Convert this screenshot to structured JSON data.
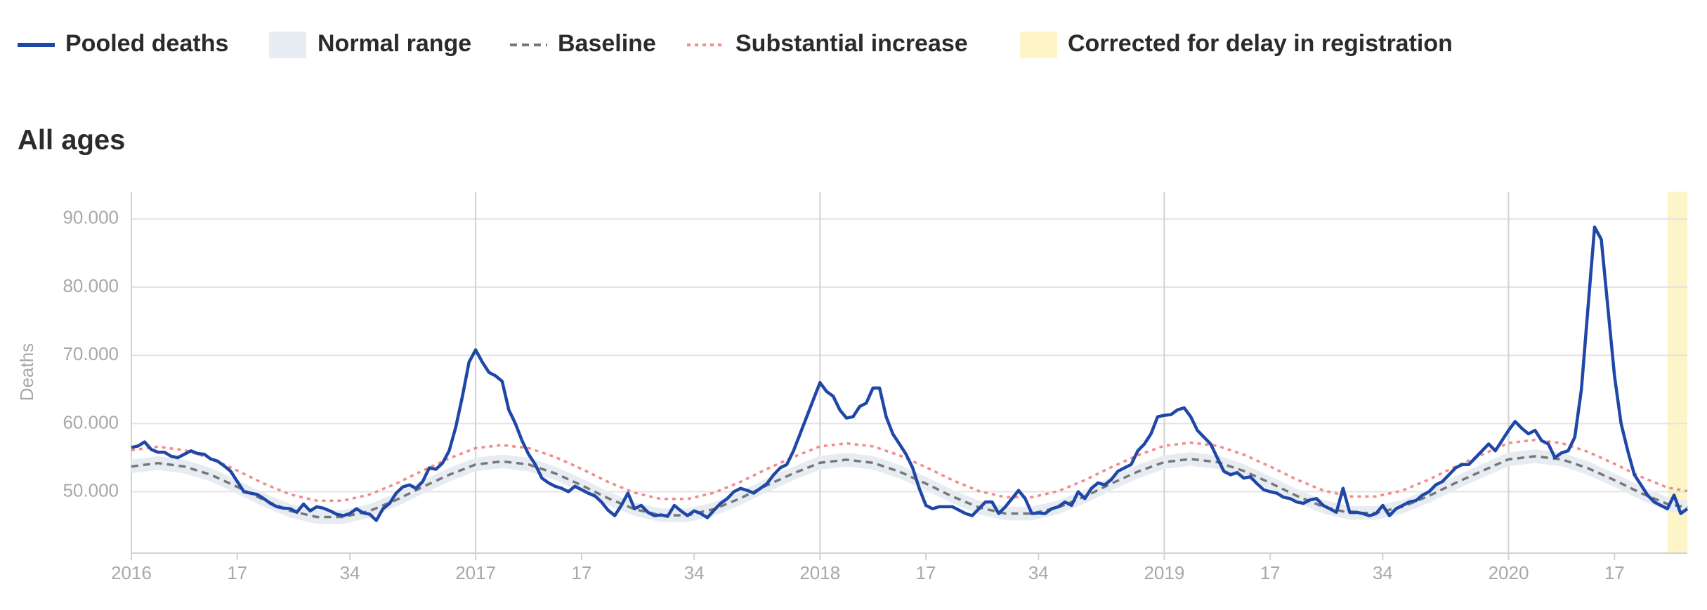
{
  "chart_data": {
    "type": "line",
    "title": "All ages",
    "y_label": "Deaths",
    "xlim": [
      0,
      235
    ],
    "ylim": [
      41000,
      94000
    ],
    "xticks": [
      {
        "value": 0,
        "label": "2016"
      },
      {
        "value": 52,
        "label": "2017"
      },
      {
        "value": 104,
        "label": "2018"
      },
      {
        "value": 156,
        "label": "2019"
      },
      {
        "value": 208,
        "label": "2020"
      }
    ],
    "xticks_minor": [
      {
        "value": 16,
        "label": "17"
      },
      {
        "value": 33,
        "label": "34"
      },
      {
        "value": 68,
        "label": "17"
      },
      {
        "value": 85,
        "label": "34"
      },
      {
        "value": 120,
        "label": "17"
      },
      {
        "value": 137,
        "label": "34"
      },
      {
        "value": 172,
        "label": "17"
      },
      {
        "value": 189,
        "label": "34"
      },
      {
        "value": 224,
        "label": "17"
      }
    ],
    "yticks": [
      {
        "value": 50000,
        "label": "50.000"
      },
      {
        "value": 60000,
        "label": "60.000"
      },
      {
        "value": 70000,
        "label": "70.000"
      },
      {
        "value": 80000,
        "label": "80.000"
      },
      {
        "value": 90000,
        "label": "90.000"
      }
    ],
    "grid": true,
    "series": [
      {
        "name": "Pooled deaths",
        "style": "solid",
        "color": "#1f47a8",
        "x": [
          0,
          1,
          2,
          3,
          4,
          5,
          6,
          7,
          8,
          9,
          10,
          11,
          12,
          13,
          14,
          15,
          16,
          17,
          18,
          19,
          20,
          21,
          22,
          23,
          24,
          25,
          26,
          27,
          28,
          29,
          30,
          31,
          32,
          33,
          34,
          35,
          36,
          37,
          38,
          39,
          40,
          41,
          42,
          43,
          44,
          45,
          46,
          47,
          48,
          49,
          50,
          51,
          52,
          53,
          54,
          55,
          56,
          57,
          58,
          59,
          60,
          61,
          62,
          63,
          64,
          65,
          66,
          67,
          68,
          69,
          70,
          71,
          72,
          73,
          74,
          75,
          76,
          77,
          78,
          79,
          80,
          81,
          82,
          83,
          84,
          85,
          86,
          87,
          88,
          89,
          90,
          91,
          92,
          93,
          94,
          95,
          96,
          97,
          98,
          99,
          100,
          101,
          102,
          103,
          104,
          105,
          106,
          107,
          108,
          109,
          110,
          111,
          112,
          113,
          114,
          115,
          116,
          117,
          118,
          119,
          120,
          121,
          122,
          123,
          124,
          125,
          126,
          127,
          128,
          129,
          130,
          131,
          132,
          133,
          134,
          135,
          136,
          137,
          138,
          139,
          140,
          141,
          142,
          143,
          144,
          145,
          146,
          147,
          148,
          149,
          150,
          151,
          152,
          153,
          154,
          155,
          156,
          157,
          158,
          159,
          160,
          161,
          162,
          163,
          164,
          165,
          166,
          167,
          168,
          169,
          170,
          171,
          172,
          173,
          174,
          175,
          176,
          177,
          178,
          179,
          180,
          181,
          182,
          183,
          184,
          185,
          186,
          187,
          188,
          189,
          190,
          191,
          192,
          193,
          194,
          195,
          196,
          197,
          198,
          199,
          200,
          201,
          202,
          203,
          204,
          205,
          206,
          207,
          208,
          209,
          210,
          211,
          212,
          213,
          214,
          215,
          216,
          217,
          218,
          219,
          220,
          221,
          222,
          223,
          224,
          225,
          226,
          227,
          228,
          229,
          230,
          231,
          232,
          233,
          234,
          235
        ],
        "values": [
          56500,
          56700,
          57300,
          56200,
          55800,
          55800,
          55200,
          55000,
          55500,
          56000,
          55600,
          55500,
          54800,
          54500,
          53800,
          53000,
          51500,
          50000,
          49800,
          49600,
          49000,
          48300,
          47800,
          47600,
          47500,
          47000,
          48200,
          47200,
          47800,
          47600,
          47200,
          46700,
          46500,
          46800,
          47500,
          46900,
          46700,
          45800,
          47500,
          48300,
          49800,
          50700,
          51000,
          50500,
          51500,
          53500,
          53300,
          54200,
          56000,
          59500,
          64000,
          69000,
          70800,
          69000,
          67500,
          67000,
          66200,
          62000,
          60000,
          57500,
          55500,
          54000,
          52000,
          51300,
          50800,
          50500,
          50000,
          50800,
          50300,
          49800,
          49400,
          48500,
          47300,
          46500,
          48000,
          49800,
          47500,
          48000,
          47000,
          46500,
          46600,
          46400,
          48000,
          47200,
          46500,
          47200,
          46800,
          46200,
          47300,
          48300,
          49000,
          50000,
          50500,
          50200,
          49800,
          50500,
          51200,
          52500,
          53500,
          54000,
          56000,
          58500,
          61000,
          63500,
          66000,
          64700,
          64000,
          62000,
          60800,
          61000,
          62500,
          63000,
          65200,
          65200,
          61000,
          58500,
          57000,
          55500,
          53500,
          50500,
          48000,
          47500,
          47800,
          47800,
          47800,
          47300,
          46800,
          46500,
          47500,
          48500,
          48500,
          46800,
          47800,
          49000,
          50200,
          49000,
          46800,
          46900,
          46800,
          47500,
          47800,
          48500,
          48000,
          50000,
          49000,
          50500,
          51300,
          51000,
          51800,
          53000,
          53500,
          54000,
          56000,
          57000,
          58500,
          61000,
          61200,
          61300,
          62000,
          62300,
          61000,
          59000,
          58000,
          57000,
          55000,
          53000,
          52500,
          52800,
          52000,
          52200,
          51200,
          50300,
          50000,
          49800,
          49200,
          49000,
          48500,
          48300,
          48800,
          49000,
          48000,
          47500,
          47000,
          50500,
          47000,
          47000,
          46800,
          46500,
          46800,
          48000,
          46500,
          47500,
          48000,
          48500,
          48700,
          49500,
          50000,
          51000,
          51500,
          52500,
          53500,
          54000,
          54000,
          55000,
          56000,
          57000,
          56000,
          57500,
          59000,
          60300,
          59300,
          58500,
          59000,
          57500,
          57000,
          55000,
          55700,
          56000,
          58000,
          65000,
          77000,
          88800,
          87000,
          77000,
          67000,
          60000,
          56000,
          52500,
          51000,
          49500,
          48500,
          48000,
          47500,
          49500,
          46800,
          47500
        ]
      },
      {
        "name": "Normal range",
        "style": "band",
        "color": "#e6ecf2",
        "x": [
          0,
          4,
          8,
          12,
          16,
          20,
          24,
          28,
          32,
          36,
          40,
          44,
          48,
          52,
          56,
          60,
          64,
          68,
          72,
          76,
          80,
          84,
          88,
          92,
          96,
          100,
          104,
          108,
          112,
          116,
          120,
          124,
          128,
          132,
          136,
          140,
          144,
          148,
          152,
          156,
          160,
          164,
          168,
          172,
          176,
          180,
          184,
          188,
          192,
          196,
          200,
          204,
          208,
          212,
          216,
          220,
          224,
          228,
          232,
          235
        ],
        "lower": [
          52700,
          53200,
          52700,
          51500,
          49700,
          47800,
          46200,
          45300,
          45300,
          46200,
          47800,
          49700,
          51500,
          53000,
          53450,
          53000,
          51700,
          49950,
          48050,
          46450,
          45550,
          45550,
          46450,
          48050,
          49950,
          51700,
          53250,
          53700,
          53250,
          51950,
          50200,
          48300,
          46700,
          45800,
          45800,
          46700,
          48300,
          50200,
          51950,
          53350,
          53800,
          53350,
          52050,
          50300,
          48400,
          46800,
          45900,
          45900,
          46800,
          48400,
          50300,
          52050,
          53750,
          54200,
          53750,
          52450,
          50700,
          48800,
          47200,
          46700
        ],
        "upper": [
          54700,
          55200,
          54700,
          53500,
          51700,
          49800,
          48200,
          47300,
          47300,
          48200,
          49800,
          51700,
          53500,
          55000,
          55450,
          55000,
          53700,
          51950,
          50050,
          48450,
          47550,
          47550,
          48450,
          50050,
          51950,
          53700,
          55250,
          55700,
          55250,
          53950,
          52200,
          50300,
          48700,
          47800,
          47800,
          48700,
          50300,
          52200,
          53950,
          55350,
          55800,
          55350,
          54050,
          52300,
          50400,
          48800,
          47900,
          47900,
          48800,
          50400,
          52300,
          54050,
          55750,
          56200,
          55750,
          54450,
          52700,
          50800,
          49200,
          48700
        ]
      },
      {
        "name": "Baseline",
        "style": "dashed",
        "color": "#777777",
        "x": [
          0,
          4,
          8,
          12,
          16,
          20,
          24,
          28,
          32,
          36,
          40,
          44,
          48,
          52,
          56,
          60,
          64,
          68,
          72,
          76,
          80,
          84,
          88,
          92,
          96,
          100,
          104,
          108,
          112,
          116,
          120,
          124,
          128,
          132,
          136,
          140,
          144,
          148,
          152,
          156,
          160,
          164,
          168,
          172,
          176,
          180,
          184,
          188,
          192,
          196,
          200,
          204,
          208,
          212,
          216,
          220,
          224,
          228,
          232,
          235
        ],
        "values": [
          53700,
          54200,
          53700,
          52500,
          50700,
          48800,
          47200,
          46300,
          46300,
          47200,
          48800,
          50700,
          52500,
          54000,
          54450,
          54000,
          52700,
          50950,
          49050,
          47450,
          46550,
          46550,
          47450,
          49050,
          50950,
          52700,
          54250,
          54700,
          54250,
          52950,
          51200,
          49300,
          47700,
          46800,
          46800,
          47700,
          49300,
          51200,
          52950,
          54350,
          54800,
          54350,
          53050,
          51300,
          49400,
          47800,
          46900,
          46900,
          47800,
          49400,
          51300,
          53050,
          54750,
          55200,
          54750,
          53450,
          51700,
          49800,
          48200,
          47700
        ]
      },
      {
        "name": "Substantial increase",
        "style": "dotted",
        "color": "#f28b8b",
        "x": [
          0,
          4,
          8,
          12,
          16,
          20,
          24,
          28,
          32,
          36,
          40,
          44,
          48,
          52,
          56,
          60,
          64,
          68,
          72,
          76,
          80,
          84,
          88,
          92,
          96,
          100,
          104,
          108,
          112,
          116,
          120,
          124,
          128,
          132,
          136,
          140,
          144,
          148,
          152,
          156,
          160,
          164,
          168,
          172,
          176,
          180,
          184,
          188,
          192,
          196,
          200,
          204,
          208,
          212,
          216,
          220,
          224,
          228,
          232,
          235
        ],
        "values": [
          56100,
          56600,
          56100,
          54900,
          53100,
          51200,
          49600,
          48700,
          48700,
          49600,
          51200,
          53100,
          54900,
          56400,
          56850,
          56400,
          55100,
          53350,
          51450,
          49850,
          48950,
          48950,
          49850,
          51450,
          53350,
          55100,
          56650,
          57100,
          56650,
          55350,
          53600,
          51700,
          50100,
          49200,
          49200,
          50100,
          51700,
          53600,
          55350,
          56750,
          57200,
          56750,
          55450,
          53700,
          51800,
          50200,
          49300,
          49300,
          50200,
          51800,
          53700,
          55450,
          57150,
          57600,
          57150,
          55850,
          54100,
          52200,
          50600,
          50100
        ]
      }
    ],
    "highlight": {
      "name": "Corrected for delay in registration",
      "color": "#fdf5c8",
      "range": [
        232,
        235
      ]
    }
  }
}
